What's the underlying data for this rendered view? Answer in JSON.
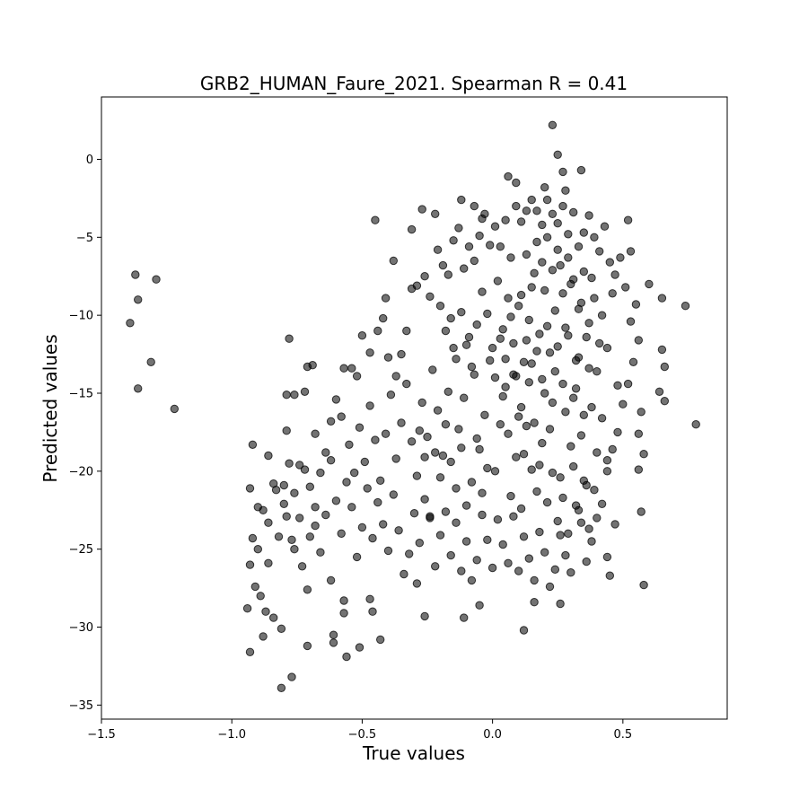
{
  "chart_data": {
    "type": "scatter",
    "title": "GRB2_HUMAN_Faure_2021. Spearman R = 0.41",
    "xlabel": "True values",
    "ylabel": "Predicted values",
    "xlim": [
      -1.5,
      0.9
    ],
    "ylim": [
      -35.9,
      4.0
    ],
    "xticks": [
      {
        "value": -1.5,
        "label": "−1.5"
      },
      {
        "value": -1.0,
        "label": "−1.0"
      },
      {
        "value": -0.5,
        "label": "−0.5"
      },
      {
        "value": 0.0,
        "label": "0.0"
      },
      {
        "value": 0.5,
        "label": "0.5"
      }
    ],
    "yticks": [
      {
        "value": 0,
        "label": "0"
      },
      {
        "value": -5,
        "label": "−5"
      },
      {
        "value": -10,
        "label": "−10"
      },
      {
        "value": -15,
        "label": "−15"
      },
      {
        "value": -20,
        "label": "−20"
      },
      {
        "value": -25,
        "label": "−25"
      },
      {
        "value": -30,
        "label": "−30"
      },
      {
        "value": -35,
        "label": "−35"
      }
    ],
    "grid": false,
    "marker_color": "#000000",
    "marker_alpha": 0.55,
    "points": [
      [
        -1.39,
        -10.5
      ],
      [
        -1.37,
        -7.4
      ],
      [
        -1.36,
        -9.0
      ],
      [
        -1.36,
        -14.7
      ],
      [
        -1.31,
        -13.0
      ],
      [
        -1.29,
        -7.7
      ],
      [
        -1.22,
        -16.0
      ],
      [
        0.23,
        2.2
      ],
      [
        0.25,
        0.3
      ],
      [
        0.27,
        -0.8
      ],
      [
        0.34,
        -0.7
      ],
      [
        0.06,
        -1.1
      ],
      [
        0.09,
        -1.5
      ],
      [
        0.2,
        -1.8
      ],
      [
        0.28,
        -2.0
      ],
      [
        -0.12,
        -2.6
      ],
      [
        -0.38,
        -6.5
      ],
      [
        -0.41,
        -8.9
      ],
      [
        -0.45,
        -3.9
      ],
      [
        -0.22,
        -3.5
      ],
      [
        -0.27,
        -3.2
      ],
      [
        -0.31,
        -4.5
      ],
      [
        -0.07,
        -3.0
      ],
      [
        -0.04,
        -3.8
      ],
      [
        0.52,
        -3.9
      ],
      [
        0.53,
        -5.9
      ],
      [
        0.6,
        -8.0
      ],
      [
        0.65,
        -8.9
      ],
      [
        0.74,
        -9.4
      ],
      [
        0.78,
        -17.0
      ],
      [
        0.65,
        -12.2
      ],
      [
        0.66,
        -13.3
      ],
      [
        0.64,
        -14.9
      ],
      [
        0.66,
        -15.5
      ],
      [
        0.57,
        -16.2
      ],
      [
        0.56,
        -17.6
      ],
      [
        0.58,
        -18.9
      ],
      [
        0.56,
        -19.9
      ],
      [
        0.57,
        -22.6
      ],
      [
        0.58,
        -27.3
      ],
      [
        0.47,
        -23.4
      ],
      [
        0.44,
        -25.5
      ],
      [
        0.45,
        -26.7
      ],
      [
        0.26,
        -28.5
      ],
      [
        0.16,
        -28.4
      ],
      [
        0.12,
        -30.2
      ],
      [
        -0.11,
        -29.4
      ],
      [
        -0.05,
        -28.6
      ],
      [
        -0.26,
        -29.3
      ],
      [
        -0.29,
        -27.2
      ],
      [
        -0.47,
        -28.2
      ],
      [
        -0.46,
        -29.0
      ],
      [
        -0.43,
        -30.8
      ],
      [
        -0.56,
        -31.9
      ],
      [
        -0.61,
        -30.5
      ],
      [
        -0.61,
        -31.0
      ],
      [
        -0.51,
        -31.3
      ],
      [
        -0.57,
        -29.1
      ],
      [
        -0.57,
        -28.3
      ],
      [
        -0.62,
        -27.0
      ],
      [
        -0.71,
        -31.2
      ],
      [
        -0.77,
        -33.2
      ],
      [
        -0.81,
        -33.9
      ],
      [
        -0.93,
        -31.6
      ],
      [
        -0.94,
        -28.8
      ],
      [
        -0.87,
        -29.0
      ],
      [
        -0.88,
        -30.6
      ],
      [
        -0.84,
        -29.4
      ],
      [
        -0.81,
        -30.1
      ],
      [
        -0.78,
        -11.5
      ],
      [
        -0.71,
        -13.3
      ],
      [
        -0.69,
        -13.2
      ],
      [
        -0.79,
        -15.1
      ],
      [
        -0.76,
        -15.1
      ],
      [
        -0.72,
        -14.9
      ],
      [
        -0.74,
        -19.6
      ],
      [
        -0.79,
        -17.4
      ],
      [
        -0.68,
        -17.6
      ],
      [
        -0.92,
        -18.3
      ],
      [
        -0.93,
        -21.1
      ],
      [
        -0.9,
        -22.3
      ],
      [
        -0.92,
        -24.3
      ],
      [
        -0.93,
        -26.0
      ],
      [
        -0.91,
        -27.4
      ],
      [
        -0.89,
        -28.0
      ],
      [
        -0.86,
        -25.9
      ],
      [
        -0.86,
        -23.3
      ],
      [
        -0.83,
        -21.2
      ],
      [
        -0.8,
        -20.9
      ],
      [
        -0.79,
        -22.9
      ],
      [
        -0.77,
        -24.4
      ],
      [
        -0.76,
        -25.0
      ],
      [
        -0.73,
        -26.1
      ],
      [
        -0.71,
        -27.6
      ],
      [
        -0.7,
        -24.2
      ],
      [
        -0.68,
        -22.3
      ],
      [
        -0.66,
        -20.1
      ],
      [
        -0.64,
        -18.8
      ],
      [
        -0.62,
        -16.8
      ],
      [
        -0.6,
        -15.4
      ],
      [
        -0.57,
        -13.4
      ],
      [
        -0.54,
        -13.4
      ],
      [
        -0.52,
        -13.9
      ],
      [
        -0.5,
        -11.3
      ],
      [
        -0.47,
        -12.4
      ],
      [
        -0.44,
        -11.0
      ],
      [
        -0.42,
        -10.2
      ],
      [
        -0.4,
        -12.7
      ],
      [
        -0.37,
        -13.9
      ],
      [
        -0.35,
        -12.5
      ],
      [
        -0.33,
        -11.0
      ],
      [
        -0.31,
        -8.3
      ],
      [
        -0.29,
        -8.1
      ],
      [
        -0.26,
        -7.5
      ],
      [
        -0.24,
        -8.8
      ],
      [
        -0.21,
        -5.8
      ],
      [
        -0.19,
        -6.8
      ],
      [
        -0.17,
        -7.4
      ],
      [
        -0.15,
        -5.2
      ],
      [
        -0.13,
        -4.4
      ],
      [
        -0.11,
        -7.0
      ],
      [
        -0.09,
        -5.6
      ],
      [
        -0.07,
        -6.5
      ],
      [
        -0.05,
        -4.9
      ],
      [
        -0.03,
        -3.5
      ],
      [
        -0.01,
        -5.5
      ],
      [
        0.01,
        -4.3
      ],
      [
        0.03,
        -5.6
      ],
      [
        0.05,
        -3.9
      ],
      [
        0.07,
        -6.3
      ],
      [
        0.09,
        -3.0
      ],
      [
        0.11,
        -4.0
      ],
      [
        0.13,
        -3.3
      ],
      [
        0.15,
        -2.6
      ],
      [
        0.17,
        -3.3
      ],
      [
        0.19,
        -4.2
      ],
      [
        0.21,
        -2.6
      ],
      [
        0.23,
        -3.5
      ],
      [
        0.25,
        -4.1
      ],
      [
        0.27,
        -3.0
      ],
      [
        0.29,
        -4.8
      ],
      [
        0.31,
        -3.4
      ],
      [
        0.33,
        -5.6
      ],
      [
        0.35,
        -4.7
      ],
      [
        0.37,
        -3.6
      ],
      [
        0.39,
        -5.0
      ],
      [
        0.41,
        -5.9
      ],
      [
        0.43,
        -4.3
      ],
      [
        0.45,
        -6.6
      ],
      [
        0.47,
        -7.4
      ],
      [
        0.49,
        -6.3
      ],
      [
        0.51,
        -8.2
      ],
      [
        0.53,
        -10.4
      ],
      [
        0.55,
        -9.3
      ],
      [
        0.56,
        -11.6
      ],
      [
        0.54,
        -13.0
      ],
      [
        0.52,
        -14.4
      ],
      [
        0.5,
        -15.7
      ],
      [
        0.48,
        -17.5
      ],
      [
        0.46,
        -18.6
      ],
      [
        0.44,
        -20.0
      ],
      [
        0.42,
        -22.1
      ],
      [
        0.4,
        -23.0
      ],
      [
        0.38,
        -24.5
      ],
      [
        0.36,
        -25.8
      ],
      [
        0.34,
        -23.3
      ],
      [
        0.32,
        -22.2
      ],
      [
        0.3,
        -26.5
      ],
      [
        0.28,
        -25.4
      ],
      [
        0.26,
        -24.1
      ],
      [
        0.24,
        -26.3
      ],
      [
        0.22,
        -27.4
      ],
      [
        0.2,
        -25.2
      ],
      [
        0.18,
        -23.9
      ],
      [
        0.16,
        -27.0
      ],
      [
        0.14,
        -25.6
      ],
      [
        0.12,
        -24.2
      ],
      [
        0.1,
        -26.4
      ],
      [
        0.08,
        -22.9
      ],
      [
        0.06,
        -25.9
      ],
      [
        0.04,
        -24.7
      ],
      [
        0.02,
        -23.1
      ],
      [
        0.0,
        -26.2
      ],
      [
        -0.02,
        -24.4
      ],
      [
        -0.04,
        -22.8
      ],
      [
        -0.06,
        -25.7
      ],
      [
        -0.08,
        -27.0
      ],
      [
        -0.1,
        -24.5
      ],
      [
        -0.12,
        -26.4
      ],
      [
        -0.14,
        -23.3
      ],
      [
        -0.16,
        -25.4
      ],
      [
        -0.18,
        -22.6
      ],
      [
        -0.2,
        -24.1
      ],
      [
        -0.22,
        -26.1
      ],
      [
        -0.24,
        -23.0
      ],
      [
        -0.26,
        -21.8
      ],
      [
        -0.28,
        -24.6
      ],
      [
        -0.3,
        -22.7
      ],
      [
        -0.32,
        -25.3
      ],
      [
        -0.34,
        -26.6
      ],
      [
        -0.36,
        -23.8
      ],
      [
        -0.38,
        -21.5
      ],
      [
        -0.4,
        -25.1
      ],
      [
        -0.42,
        -23.4
      ],
      [
        -0.44,
        -22.0
      ],
      [
        -0.46,
        -24.3
      ],
      [
        -0.48,
        -21.1
      ],
      [
        -0.5,
        -23.6
      ],
      [
        -0.52,
        -25.5
      ],
      [
        -0.54,
        -22.3
      ],
      [
        -0.56,
        -20.7
      ],
      [
        -0.58,
        -24.0
      ],
      [
        -0.6,
        -21.9
      ],
      [
        -0.62,
        -19.3
      ],
      [
        -0.64,
        -22.8
      ],
      [
        -0.66,
        -25.2
      ],
      [
        -0.68,
        -23.5
      ],
      [
        -0.7,
        -21.0
      ],
      [
        -0.72,
        -19.9
      ],
      [
        -0.74,
        -23.0
      ],
      [
        -0.76,
        -21.4
      ],
      [
        -0.78,
        -19.5
      ],
      [
        -0.8,
        -22.1
      ],
      [
        -0.82,
        -24.2
      ],
      [
        -0.84,
        -20.8
      ],
      [
        -0.86,
        -19.0
      ],
      [
        -0.88,
        -22.5
      ],
      [
        -0.9,
        -25.0
      ],
      [
        -0.58,
        -16.5
      ],
      [
        -0.55,
        -18.3
      ],
      [
        -0.53,
        -20.1
      ],
      [
        -0.51,
        -17.2
      ],
      [
        -0.49,
        -19.4
      ],
      [
        -0.47,
        -15.8
      ],
      [
        -0.45,
        -18.0
      ],
      [
        -0.43,
        -20.6
      ],
      [
        -0.41,
        -17.6
      ],
      [
        -0.39,
        -15.1
      ],
      [
        -0.37,
        -19.2
      ],
      [
        -0.35,
        -16.9
      ],
      [
        -0.33,
        -14.4
      ],
      [
        -0.31,
        -18.1
      ],
      [
        -0.29,
        -20.3
      ],
      [
        -0.27,
        -15.6
      ],
      [
        -0.25,
        -17.8
      ],
      [
        -0.23,
        -13.5
      ],
      [
        -0.21,
        -16.1
      ],
      [
        -0.19,
        -19.0
      ],
      [
        -0.17,
        -14.9
      ],
      [
        -0.15,
        -12.1
      ],
      [
        -0.13,
        -17.3
      ],
      [
        -0.11,
        -15.3
      ],
      [
        -0.09,
        -11.4
      ],
      [
        -0.07,
        -13.8
      ],
      [
        -0.05,
        -18.6
      ],
      [
        -0.03,
        -16.4
      ],
      [
        -0.01,
        -12.9
      ],
      [
        0.01,
        -20.0
      ],
      [
        0.03,
        -17.0
      ],
      [
        0.05,
        -14.6
      ],
      [
        0.07,
        -21.6
      ],
      [
        0.09,
        -19.1
      ],
      [
        0.11,
        -22.4
      ],
      [
        -0.2,
        -9.4
      ],
      [
        -0.18,
        -11.0
      ],
      [
        -0.16,
        -10.2
      ],
      [
        -0.14,
        -12.8
      ],
      [
        -0.12,
        -9.8
      ],
      [
        -0.1,
        -11.9
      ],
      [
        -0.08,
        -13.3
      ],
      [
        -0.06,
        -10.6
      ],
      [
        -0.04,
        -8.5
      ],
      [
        -0.02,
        -9.9
      ],
      [
        0.0,
        -12.1
      ],
      [
        0.02,
        -7.8
      ],
      [
        0.04,
        -10.9
      ],
      [
        0.06,
        -8.9
      ],
      [
        0.08,
        -11.8
      ],
      [
        0.1,
        -9.4
      ],
      [
        0.12,
        -13.0
      ],
      [
        0.14,
        -10.3
      ],
      [
        0.16,
        -7.3
      ],
      [
        0.18,
        -11.2
      ],
      [
        0.2,
        -8.4
      ],
      [
        0.22,
        -12.4
      ],
      [
        0.24,
        -9.7
      ],
      [
        0.26,
        -6.8
      ],
      [
        0.28,
        -10.8
      ],
      [
        0.3,
        -8.0
      ],
      [
        0.32,
        -12.9
      ],
      [
        0.34,
        -9.2
      ],
      [
        0.36,
        -11.4
      ],
      [
        0.38,
        -7.6
      ],
      [
        0.4,
        -13.6
      ],
      [
        0.42,
        -10.0
      ],
      [
        0.44,
        -12.1
      ],
      [
        0.46,
        -8.6
      ],
      [
        0.48,
        -14.5
      ],
      [
        0.04,
        -15.2
      ],
      [
        0.06,
        -17.6
      ],
      [
        0.08,
        -13.8
      ],
      [
        0.1,
        -16.5
      ],
      [
        0.12,
        -18.9
      ],
      [
        0.14,
        -14.3
      ],
      [
        0.16,
        -16.9
      ],
      [
        0.18,
        -19.6
      ],
      [
        0.2,
        -15.0
      ],
      [
        0.22,
        -17.3
      ],
      [
        0.24,
        -13.6
      ],
      [
        0.26,
        -20.4
      ],
      [
        0.28,
        -16.2
      ],
      [
        0.3,
        -18.4
      ],
      [
        0.32,
        -14.7
      ],
      [
        0.34,
        -17.7
      ],
      [
        0.36,
        -20.9
      ],
      [
        0.38,
        -15.9
      ],
      [
        0.4,
        -18.8
      ],
      [
        0.42,
        -16.6
      ],
      [
        0.44,
        -19.3
      ],
      [
        0.13,
        -11.6
      ],
      [
        0.15,
        -13.1
      ],
      [
        0.17,
        -12.3
      ],
      [
        0.19,
        -14.1
      ],
      [
        0.21,
        -10.7
      ],
      [
        0.23,
        -15.6
      ],
      [
        0.25,
        -12.0
      ],
      [
        0.27,
        -14.4
      ],
      [
        0.29,
        -11.3
      ],
      [
        0.31,
        -15.3
      ],
      [
        0.33,
        -12.7
      ],
      [
        0.35,
        -16.4
      ],
      [
        0.37,
        -13.4
      ],
      [
        0.11,
        -15.9
      ],
      [
        0.13,
        -17.1
      ],
      [
        0.15,
        -19.9
      ],
      [
        0.17,
        -21.3
      ],
      [
        0.19,
        -18.2
      ],
      [
        0.21,
        -22.0
      ],
      [
        0.23,
        -20.1
      ],
      [
        0.25,
        -23.2
      ],
      [
        0.27,
        -21.7
      ],
      [
        0.29,
        -24.0
      ],
      [
        0.31,
        -19.7
      ],
      [
        0.33,
        -22.5
      ],
      [
        0.35,
        -20.6
      ],
      [
        0.37,
        -23.7
      ],
      [
        0.39,
        -21.2
      ],
      [
        -0.02,
        -19.8
      ],
      [
        -0.04,
        -21.4
      ],
      [
        -0.06,
        -17.9
      ],
      [
        -0.08,
        -20.7
      ],
      [
        -0.1,
        -22.2
      ],
      [
        -0.12,
        -18.5
      ],
      [
        -0.14,
        -21.1
      ],
      [
        -0.16,
        -19.4
      ],
      [
        -0.18,
        -17.0
      ],
      [
        -0.2,
        -20.4
      ],
      [
        -0.22,
        -18.8
      ],
      [
        -0.24,
        -22.9
      ],
      [
        -0.26,
        -19.1
      ],
      [
        -0.28,
        -17.4
      ],
      [
        0.01,
        -14.0
      ],
      [
        0.03,
        -11.5
      ],
      [
        0.05,
        -12.8
      ],
      [
        0.07,
        -10.1
      ],
      [
        0.09,
        -13.9
      ],
      [
        0.11,
        -8.7
      ],
      [
        0.13,
        -6.1
      ],
      [
        0.15,
        -8.2
      ],
      [
        0.17,
        -5.3
      ],
      [
        0.19,
        -6.6
      ],
      [
        0.21,
        -5.0
      ],
      [
        0.23,
        -7.1
      ],
      [
        0.25,
        -5.8
      ],
      [
        0.27,
        -8.6
      ],
      [
        0.29,
        -6.3
      ],
      [
        0.31,
        -7.7
      ],
      [
        0.33,
        -9.6
      ],
      [
        0.35,
        -7.2
      ],
      [
        0.37,
        -10.5
      ],
      [
        0.39,
        -8.9
      ],
      [
        0.41,
        -11.8
      ]
    ]
  }
}
